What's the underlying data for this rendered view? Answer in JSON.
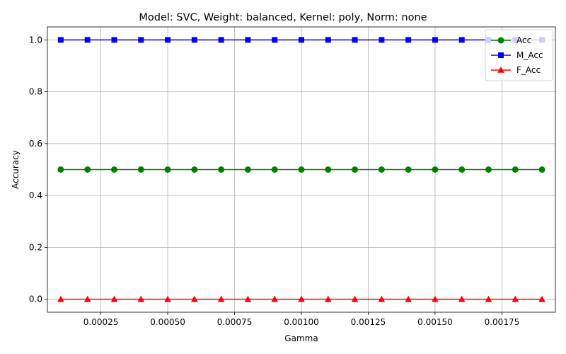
{
  "chart_data": {
    "type": "line",
    "title": "Model: SVC, Weight: balanced, Kernel: poly, Norm: none",
    "xlabel": "Gamma",
    "ylabel": "Accuracy",
    "x": [
      0.0001,
      0.0002,
      0.0003,
      0.0004,
      0.0005,
      0.0006,
      0.0007,
      0.0008,
      0.0009,
      0.001,
      0.0011,
      0.0012,
      0.0013,
      0.0014,
      0.0015,
      0.0016,
      0.0017,
      0.0018,
      0.0019
    ],
    "xlim": [
      5e-05,
      0.00195
    ],
    "ylim": [
      -0.05,
      1.05
    ],
    "xticks": [
      0.00025,
      0.0005,
      0.00075,
      0.001,
      0.00125,
      0.0015,
      0.00175
    ],
    "xtick_labels": [
      "0.00025",
      "0.00050",
      "0.00075",
      "0.00100",
      "0.00125",
      "0.00150",
      "0.00175"
    ],
    "yticks": [
      0.0,
      0.2,
      0.4,
      0.6,
      0.8,
      1.0
    ],
    "ytick_labels": [
      "0.0",
      "0.2",
      "0.4",
      "0.6",
      "0.8",
      "1.0"
    ],
    "grid": true,
    "legend_position": "top-right",
    "series": [
      {
        "name": "Acc",
        "color": "#008000",
        "marker": "circle",
        "values": [
          0.5,
          0.5,
          0.5,
          0.5,
          0.5,
          0.5,
          0.5,
          0.5,
          0.5,
          0.5,
          0.5,
          0.5,
          0.5,
          0.5,
          0.5,
          0.5,
          0.5,
          0.5,
          0.5
        ]
      },
      {
        "name": "M_Acc",
        "color": "#0000ff",
        "marker": "square",
        "values": [
          1.0,
          1.0,
          1.0,
          1.0,
          1.0,
          1.0,
          1.0,
          1.0,
          1.0,
          1.0,
          1.0,
          1.0,
          1.0,
          1.0,
          1.0,
          1.0,
          1.0,
          1.0,
          1.0
        ]
      },
      {
        "name": "F_Acc",
        "color": "#ff0000",
        "marker": "triangle",
        "values": [
          0.0,
          0.0,
          0.0,
          0.0,
          0.0,
          0.0,
          0.0,
          0.0,
          0.0,
          0.0,
          0.0,
          0.0,
          0.0,
          0.0,
          0.0,
          0.0,
          0.0,
          0.0,
          0.0
        ]
      }
    ]
  }
}
